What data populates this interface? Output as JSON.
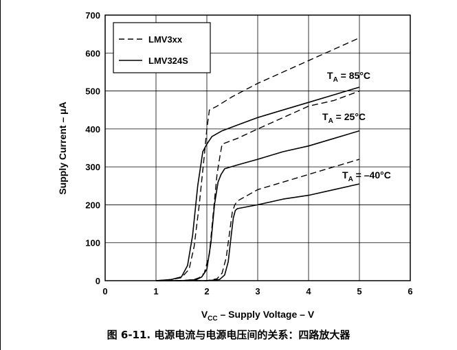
{
  "chart_data": {
    "type": "line",
    "title": "",
    "caption": "图 6-11. 电源电流与电源电压间的关系：四路放大器",
    "xlabel": {
      "pre": "V",
      "sub": "CC",
      "post": " – Supply Voltage – V"
    },
    "ylabel": "Supply Current – μA",
    "xlim": [
      0,
      6
    ],
    "ylim": [
      0,
      700
    ],
    "xticks": [
      "0",
      "1",
      "2",
      "3",
      "4",
      "5",
      "6"
    ],
    "yticks": [
      "0",
      "100",
      "200",
      "300",
      "400",
      "500",
      "600",
      "700"
    ],
    "grid": true,
    "legend": {
      "placement": "top-left",
      "entries": [
        {
          "name": "LMV3xx",
          "style": "dashed"
        },
        {
          "name": "LMV324S",
          "style": "solid"
        }
      ]
    },
    "annotations": [
      {
        "pre": "T",
        "sub": "A",
        "post": " = 85°C",
        "x": 4.8,
        "y": 525
      },
      {
        "pre": "T",
        "sub": "A",
        "post": " = 25°C",
        "x": 4.7,
        "y": 425
      },
      {
        "pre": "T",
        "sub": "A",
        "post": " = –40°C",
        "x": 4.82,
        "y": 275
      }
    ],
    "series": [
      {
        "name": "LMV3xx 85°C",
        "style": "dashed",
        "x": [
          1.0,
          1.3,
          1.5,
          1.65,
          1.75,
          1.85,
          1.95,
          2.0,
          2.05,
          2.2,
          2.5,
          3.0,
          3.5,
          4.0,
          4.5,
          5.0
        ],
        "y": [
          0,
          3,
          8,
          30,
          90,
          200,
          330,
          400,
          450,
          460,
          485,
          520,
          550,
          580,
          610,
          640
        ]
      },
      {
        "name": "LMV324S 85°C",
        "style": "solid",
        "x": [
          1.0,
          1.3,
          1.5,
          1.62,
          1.72,
          1.82,
          1.92,
          2.0,
          2.1,
          2.3,
          2.6,
          3.0,
          3.5,
          4.0,
          4.5,
          5.0
        ],
        "y": [
          0,
          3,
          10,
          40,
          120,
          250,
          340,
          360,
          380,
          395,
          410,
          430,
          450,
          470,
          490,
          510
        ]
      },
      {
        "name": "LMV3xx 25°C",
        "style": "dashed",
        "x": [
          1.0,
          1.5,
          1.75,
          1.85,
          1.95,
          2.05,
          2.12,
          2.2,
          2.26,
          2.3,
          2.6,
          3.0,
          3.5,
          4.0,
          4.5,
          5.0
        ],
        "y": [
          0,
          0,
          3,
          8,
          20,
          70,
          170,
          280,
          330,
          360,
          375,
          400,
          430,
          460,
          475,
          500
        ]
      },
      {
        "name": "LMV324S 25°C",
        "style": "solid",
        "x": [
          1.0,
          1.5,
          1.8,
          1.9,
          2.0,
          2.08,
          2.15,
          2.22,
          2.28,
          2.35,
          2.6,
          3.0,
          3.5,
          4.0,
          4.5,
          5.0
        ],
        "y": [
          0,
          0,
          3,
          10,
          30,
          100,
          200,
          260,
          280,
          295,
          305,
          320,
          340,
          355,
          375,
          395
        ]
      },
      {
        "name": "LMV3xx -40°C",
        "style": "dashed",
        "x": [
          1.0,
          2.0,
          2.2,
          2.3,
          2.38,
          2.45,
          2.5,
          2.55,
          2.6,
          3.0,
          3.5,
          4.0,
          4.5,
          5.0
        ],
        "y": [
          0,
          0,
          5,
          20,
          60,
          130,
          180,
          200,
          210,
          240,
          260,
          280,
          300,
          320
        ]
      },
      {
        "name": "LMV324S -40°C",
        "style": "solid",
        "x": [
          1.0,
          2.0,
          2.25,
          2.35,
          2.42,
          2.48,
          2.52,
          2.56,
          2.6,
          3.0,
          3.5,
          4.0,
          4.5,
          5.0
        ],
        "y": [
          0,
          0,
          3,
          15,
          50,
          120,
          165,
          185,
          190,
          200,
          215,
          225,
          240,
          255
        ]
      }
    ]
  }
}
